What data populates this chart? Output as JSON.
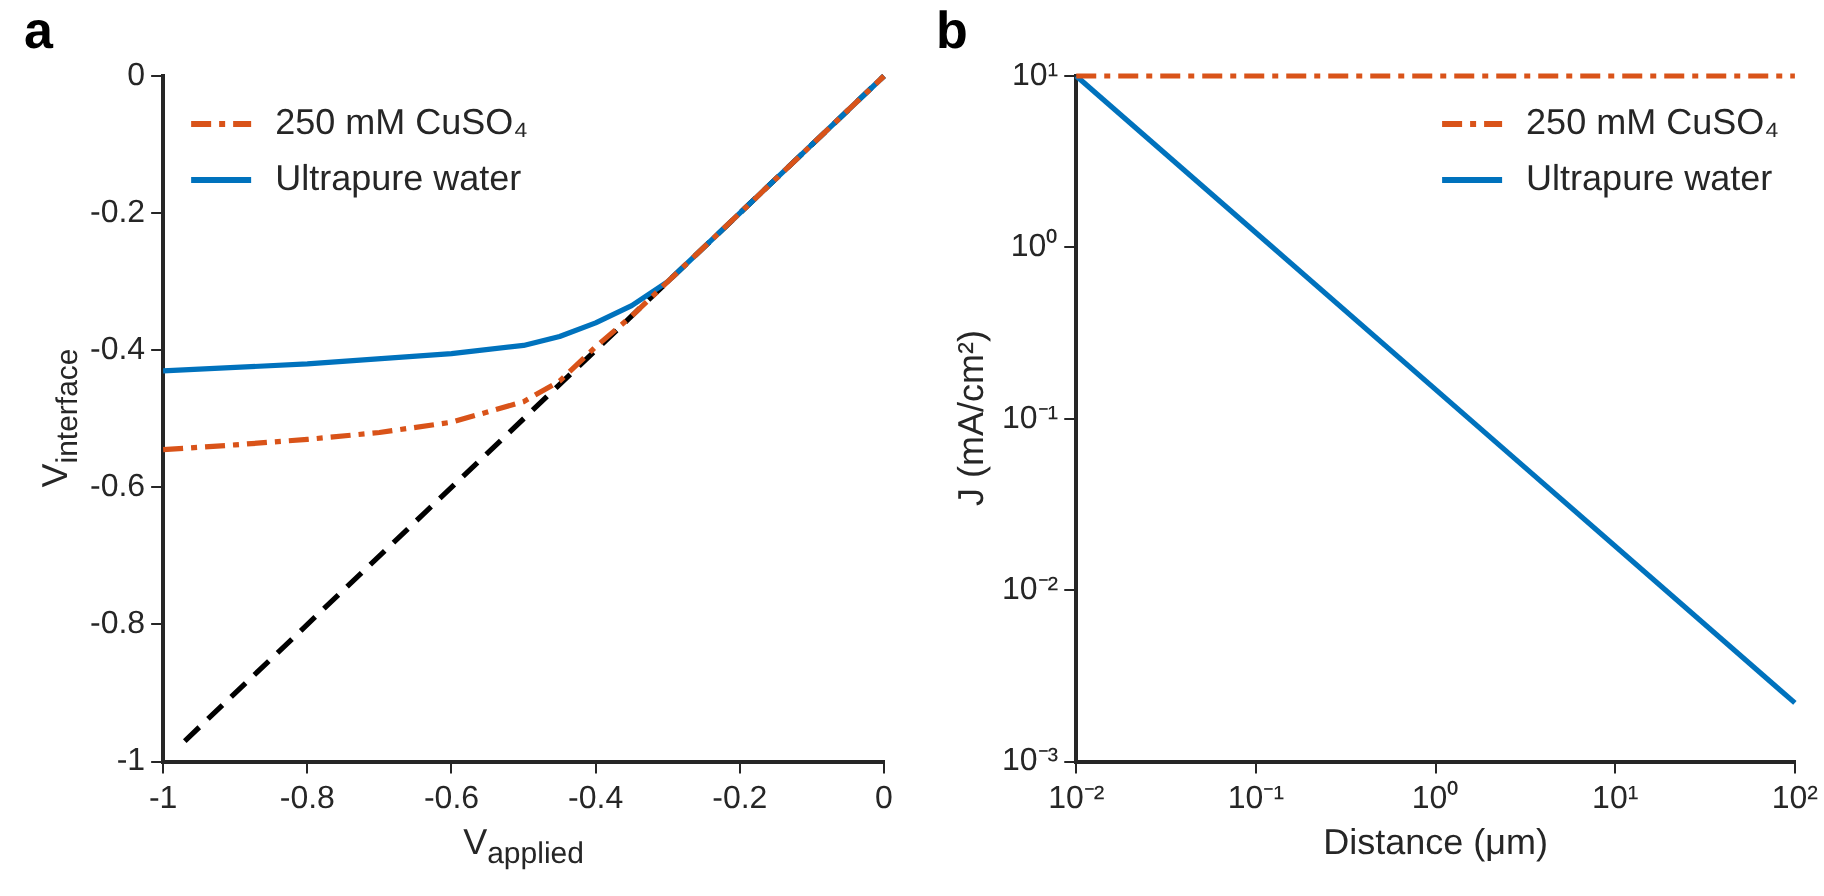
{
  "chart_data": [
    {
      "type": "line",
      "title": "a",
      "xlabel": "V$_{applied}$",
      "ylabel": "V$_{interface}$",
      "xlim": [
        -1,
        0
      ],
      "ylim": [
        -1,
        0
      ],
      "xticks": [
        -1,
        -0.8,
        -0.6,
        -0.4,
        -0.2,
        0
      ],
      "yticks": [
        -1,
        -0.8,
        -0.6,
        -0.4,
        -0.2,
        0
      ],
      "grid": false,
      "legend": "top left",
      "marker": "none",
      "series": [
        {
          "name": "250 mM CuSO₄",
          "color": "#d95319",
          "line_style": "dashdot",
          "x": [
            -1,
            -0.9,
            -0.8,
            -0.7,
            -0.6,
            -0.5,
            -0.45,
            -0.4,
            -0.35,
            -0.3,
            0
          ],
          "values": [
            -0.545,
            -0.538,
            -0.53,
            -0.52,
            -0.505,
            -0.475,
            -0.445,
            -0.395,
            -0.35,
            -0.3,
            0
          ]
        },
        {
          "name": "Ultrapure water",
          "color": "#0072bd",
          "line_style": "solid",
          "x": [
            -1,
            -0.8,
            -0.6,
            -0.5,
            -0.45,
            -0.4,
            -0.35,
            -0.3,
            0
          ],
          "values": [
            -0.43,
            -0.42,
            -0.405,
            -0.393,
            -0.38,
            -0.36,
            -0.335,
            -0.3,
            0
          ]
        },
        {
          "color": "#000000",
          "line_style": "dashed",
          "x": [
            -0.97,
            0
          ],
          "values": [
            -0.97,
            0
          ]
        }
      ]
    },
    {
      "type": "line",
      "title": "b",
      "xlabel": "Distance (μm)",
      "ylabel": "J (mA/cm²)",
      "log": "xy",
      "xlim": [
        0.01,
        100
      ],
      "ylim": [
        0.001,
        10
      ],
      "xticks": [
        {
          "value": 0.01,
          "label": "10⁻²"
        },
        {
          "value": 0.1,
          "label": "10⁻¹"
        },
        {
          "value": 1,
          "label": "10⁰"
        },
        {
          "value": 10,
          "label": "10¹"
        },
        {
          "value": 100,
          "label": "10²"
        }
      ],
      "yticks": [
        {
          "value": 0.001,
          "label": "10⁻³"
        },
        {
          "value": 0.01,
          "label": "10⁻²"
        },
        {
          "value": 0.1,
          "label": "10⁻¹"
        },
        {
          "value": 1,
          "label": "10⁰"
        },
        {
          "value": 10,
          "label": "10¹"
        }
      ],
      "grid": false,
      "legend": "top right",
      "marker": "none",
      "series": [
        {
          "name": "250 mM CuSO₄",
          "color": "#d95319",
          "line_style": "dashdot",
          "x": [
            0.01,
            100
          ],
          "values": [
            10,
            10
          ]
        },
        {
          "name": "Ultrapure water",
          "color": "#0072bd",
          "line_style": "solid",
          "x": [
            0.01,
            100
          ],
          "values": [
            10,
            0.0022
          ]
        }
      ]
    }
  ]
}
